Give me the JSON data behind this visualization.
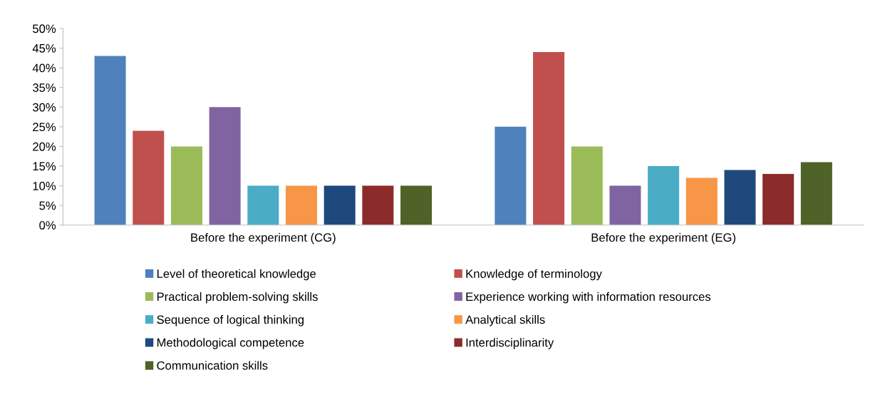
{
  "chart_data": {
    "type": "bar",
    "categories": [
      "Before the experiment (CG)",
      "Before the experiment (EG)"
    ],
    "series": [
      {
        "name": "Level of theoretical knowledge",
        "color": "#4f81bd",
        "values": [
          43,
          25
        ]
      },
      {
        "name": "Knowledge of terminology",
        "color": "#c0504d",
        "values": [
          24,
          44
        ]
      },
      {
        "name": "Practical problem-solving skills",
        "color": "#9bbb59",
        "values": [
          20,
          20
        ]
      },
      {
        "name": "Experience working with information resources",
        "color": "#8064a2",
        "values": [
          30,
          10
        ]
      },
      {
        "name": "Sequence of logical thinking",
        "color": "#4bacc6",
        "values": [
          10,
          15
        ]
      },
      {
        "name": "Analytical skills",
        "color": "#f79646",
        "values": [
          10,
          12
        ]
      },
      {
        "name": "Methodological competence",
        "color": "#1f497d",
        "values": [
          10,
          14
        ]
      },
      {
        "name": "Interdisciplinarity",
        "color": "#8b2c2a",
        "values": [
          10,
          13
        ]
      },
      {
        "name": "Communication skills",
        "color": "#4f6228",
        "values": [
          10,
          16
        ]
      }
    ],
    "ylim": [
      0,
      50
    ],
    "yticks": [
      {
        "value": 0,
        "label": "0%"
      },
      {
        "value": 5,
        "label": "5%"
      },
      {
        "value": 10,
        "label": "10%"
      },
      {
        "value": 15,
        "label": "15%"
      },
      {
        "value": 20,
        "label": "20%"
      },
      {
        "value": 25,
        "label": "25%"
      },
      {
        "value": 30,
        "label": "30%"
      },
      {
        "value": 35,
        "label": "35%"
      },
      {
        "value": 40,
        "label": "40%"
      },
      {
        "value": 45,
        "label": "45%"
      },
      {
        "value": 50,
        "label": "50%"
      }
    ],
    "grid": false,
    "legend": "bottom"
  }
}
